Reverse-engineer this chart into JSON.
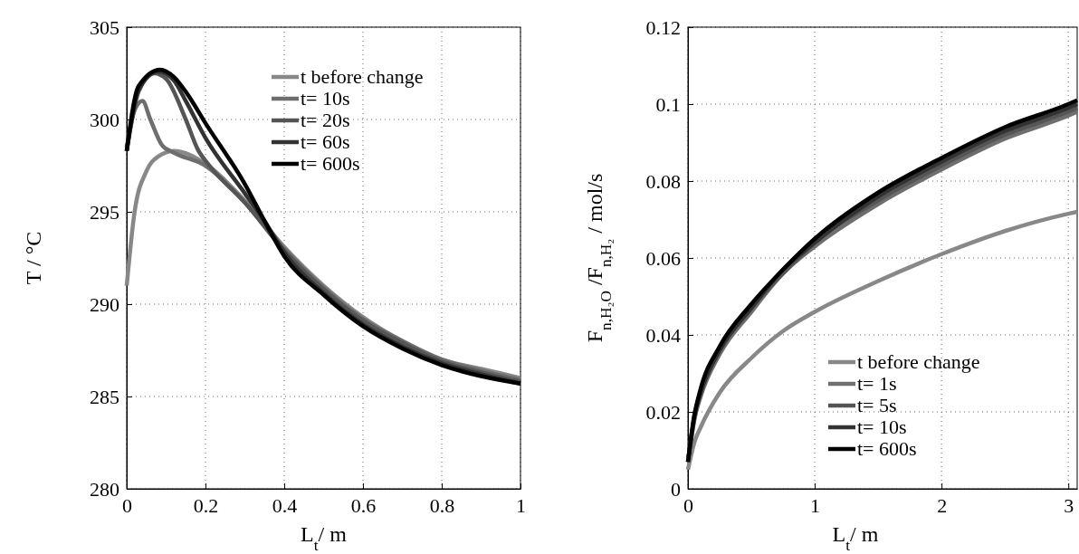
{
  "chart_data": [
    {
      "type": "line",
      "xlabel": "L$_{t}$/ m",
      "ylabel": "T / °C",
      "xlim": [
        0,
        1
      ],
      "ylim": [
        280,
        305
      ],
      "xticks": [
        0,
        0.2,
        0.4,
        0.6,
        0.8,
        1
      ],
      "yticks": [
        280,
        285,
        290,
        295,
        300,
        305
      ],
      "grid": true,
      "legend": "top right",
      "line_style": "solid",
      "marker": "none",
      "series": [
        {
          "name": "t before change",
          "color": "#888888",
          "x": [
            0,
            0.02,
            0.05,
            0.08,
            0.12,
            0.2,
            0.3,
            0.4,
            0.5,
            0.6,
            0.7,
            0.8,
            0.9,
            1
          ],
          "values": [
            291,
            295,
            297.2,
            298,
            298.3,
            297.6,
            295.6,
            293.1,
            291,
            289.3,
            288,
            287,
            286.5,
            286
          ]
        },
        {
          "name": "t= 10s",
          "color": "#6e6e6e",
          "x": [
            0,
            0.02,
            0.04,
            0.06,
            0.09,
            0.12,
            0.2,
            0.3,
            0.4,
            0.5,
            0.6,
            0.7,
            0.8,
            0.9,
            1
          ],
          "values": [
            298.5,
            300.5,
            301,
            300,
            298.6,
            298.2,
            297.5,
            295.5,
            293,
            290.9,
            289.2,
            288,
            287,
            286.4,
            285.9
          ]
        },
        {
          "name": "t= 20s",
          "color": "#555555",
          "x": [
            0,
            0.03,
            0.07,
            0.1,
            0.15,
            0.18,
            0.21,
            0.3,
            0.4,
            0.5,
            0.6,
            0.7,
            0.8,
            0.9,
            1
          ],
          "values": [
            298.3,
            301.5,
            302.5,
            302.2,
            300,
            298.4,
            297.5,
            295.5,
            292.9,
            290.8,
            289.1,
            287.9,
            286.9,
            286.3,
            285.8
          ]
        },
        {
          "name": "t= 60s",
          "color": "#333333",
          "x": [
            0,
            0.03,
            0.08,
            0.12,
            0.15,
            0.2,
            0.3,
            0.35,
            0.4,
            0.5,
            0.6,
            0.7,
            0.8,
            0.9,
            1
          ],
          "values": [
            298.3,
            301.6,
            302.6,
            302.1,
            301,
            299,
            296,
            294.5,
            292.8,
            290.6,
            288.9,
            287.7,
            286.8,
            286.2,
            285.7
          ]
        },
        {
          "name": "t= 600s",
          "color": "#000000",
          "x": [
            0,
            0.03,
            0.085,
            0.12,
            0.15,
            0.2,
            0.3,
            0.35,
            0.4,
            0.5,
            0.6,
            0.7,
            0.8,
            0.9,
            1
          ],
          "values": [
            298.3,
            301.8,
            302.7,
            302.3,
            301.5,
            299.8,
            296.5,
            294.5,
            292.6,
            290.5,
            288.8,
            287.6,
            286.7,
            286.1,
            285.7
          ]
        }
      ]
    },
    {
      "type": "line",
      "xlabel": "L$_{t}$/ m",
      "ylabel": "F$_{n,H₂O}$ /F$_{n,H₂}$ / mol/s",
      "xlim": [
        0,
        3.07
      ],
      "ylim": [
        0,
        0.12
      ],
      "xticks": [
        0,
        1,
        2,
        3
      ],
      "yticks": [
        0,
        0.02,
        0.04,
        0.06,
        0.08,
        0.1,
        0.12
      ],
      "grid": true,
      "legend": "bottom right",
      "line_style": "solid",
      "marker": "none",
      "series": [
        {
          "name": "t before change",
          "color": "#888888",
          "x": [
            0,
            0.05,
            0.1,
            0.25,
            0.5,
            0.75,
            1,
            1.5,
            2,
            2.5,
            3,
            3.07
          ],
          "values": [
            0.005,
            0.012,
            0.016,
            0.025,
            0.034,
            0.041,
            0.046,
            0.054,
            0.061,
            0.067,
            0.0715,
            0.072
          ]
        },
        {
          "name": "t= 1s",
          "color": "#6e6e6e",
          "x": [
            0,
            0.05,
            0.1,
            0.25,
            0.5,
            0.75,
            1,
            1.5,
            2,
            2.5,
            3,
            3.07
          ],
          "values": [
            0.007,
            0.018,
            0.024,
            0.035,
            0.046,
            0.056,
            0.063,
            0.074,
            0.083,
            0.091,
            0.097,
            0.098
          ]
        },
        {
          "name": "t= 5s",
          "color": "#555555",
          "x": [
            0,
            0.05,
            0.1,
            0.25,
            0.5,
            0.75,
            1,
            1.5,
            2,
            2.5,
            3,
            3.07
          ],
          "values": [
            0.007,
            0.018,
            0.025,
            0.036,
            0.047,
            0.056,
            0.064,
            0.075,
            0.084,
            0.092,
            0.098,
            0.099
          ]
        },
        {
          "name": "t= 10s",
          "color": "#333333",
          "x": [
            0,
            0.05,
            0.1,
            0.25,
            0.5,
            0.75,
            1,
            1.5,
            2,
            2.5,
            3,
            3.07
          ],
          "values": [
            0.007,
            0.019,
            0.025,
            0.036,
            0.047,
            0.057,
            0.064,
            0.076,
            0.085,
            0.093,
            0.099,
            0.1
          ]
        },
        {
          "name": "t= 600s",
          "color": "#000000",
          "x": [
            0,
            0.05,
            0.1,
            0.25,
            0.5,
            0.75,
            1,
            1.5,
            2,
            2.5,
            3,
            3.07
          ],
          "values": [
            0.007,
            0.019,
            0.026,
            0.037,
            0.048,
            0.057,
            0.065,
            0.077,
            0.086,
            0.094,
            0.1,
            0.101
          ]
        }
      ]
    }
  ]
}
